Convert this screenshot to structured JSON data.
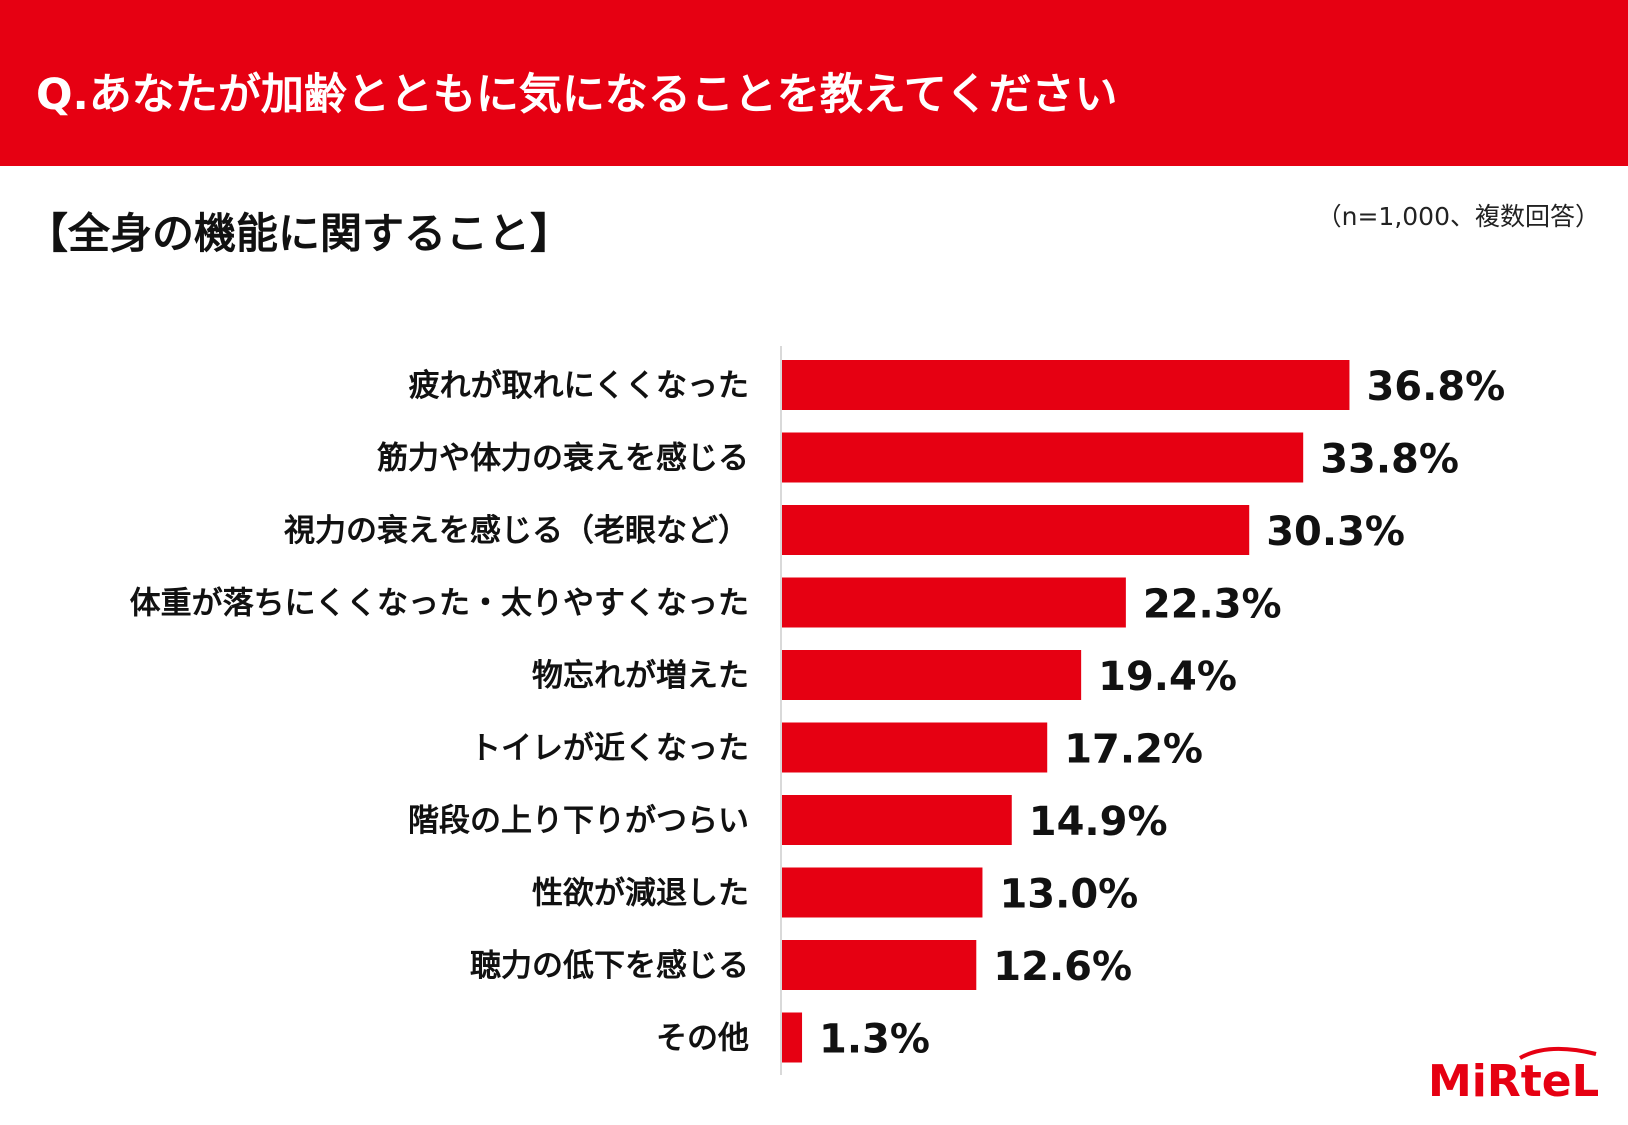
{
  "header": {
    "question": "Q.あなたが加齢とともに気になることを教えてください"
  },
  "section": {
    "title": "【全身の機能に関すること】",
    "sample_note": "（n=1,000、複数回答）"
  },
  "brand": {
    "logo_text": "MiRteL",
    "accent_color": "#e60012"
  },
  "chart_data": {
    "type": "bar",
    "orientation": "horizontal",
    "categories": [
      "疲れが取れにくくなった",
      "筋力や体力の衰えを感じる",
      "視力の衰えを感じる（老眼など）",
      "体重が落ちにくくなった・太りやすくなった",
      "物忘れが増えた",
      "トイレが近くなった",
      "階段の上り下りがつらい",
      "性欲が減退した",
      "聴力の低下を感じる",
      "その他"
    ],
    "values": [
      36.8,
      33.8,
      30.3,
      22.3,
      19.4,
      17.2,
      14.9,
      13.0,
      12.6,
      1.3
    ],
    "value_labels": [
      "36.8%",
      "33.8%",
      "30.3%",
      "22.3%",
      "19.4%",
      "17.2%",
      "14.9%",
      "13.0%",
      "12.6%",
      "1.3%"
    ],
    "unit": "%",
    "xlim": [
      0,
      40
    ],
    "grid": false,
    "legend": "none",
    "bar_color": "#e60012"
  }
}
